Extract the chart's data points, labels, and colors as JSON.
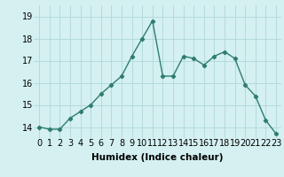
{
  "x": [
    0,
    1,
    2,
    3,
    4,
    5,
    6,
    7,
    8,
    9,
    10,
    11,
    12,
    13,
    14,
    15,
    16,
    17,
    18,
    19,
    20,
    21,
    22,
    23
  ],
  "y": [
    14.0,
    13.9,
    13.9,
    14.4,
    14.7,
    15.0,
    15.5,
    15.9,
    16.3,
    17.2,
    18.0,
    18.8,
    16.3,
    16.3,
    17.2,
    17.1,
    16.8,
    17.2,
    17.4,
    17.1,
    15.9,
    15.4,
    14.3,
    13.7
  ],
  "line_color": "#2e7d6e",
  "marker": "D",
  "marker_size": 2.2,
  "bg_color": "#d4f0f0",
  "grid_color": "#b0d8d8",
  "xlabel": "Humidex (Indice chaleur)",
  "xlabel_fontsize": 7.5,
  "tick_fontsize": 7,
  "ylim": [
    13.5,
    19.5
  ],
  "xlim": [
    -0.5,
    23.5
  ],
  "yticks": [
    14,
    15,
    16,
    17,
    18,
    19
  ],
  "line_width": 1.0
}
